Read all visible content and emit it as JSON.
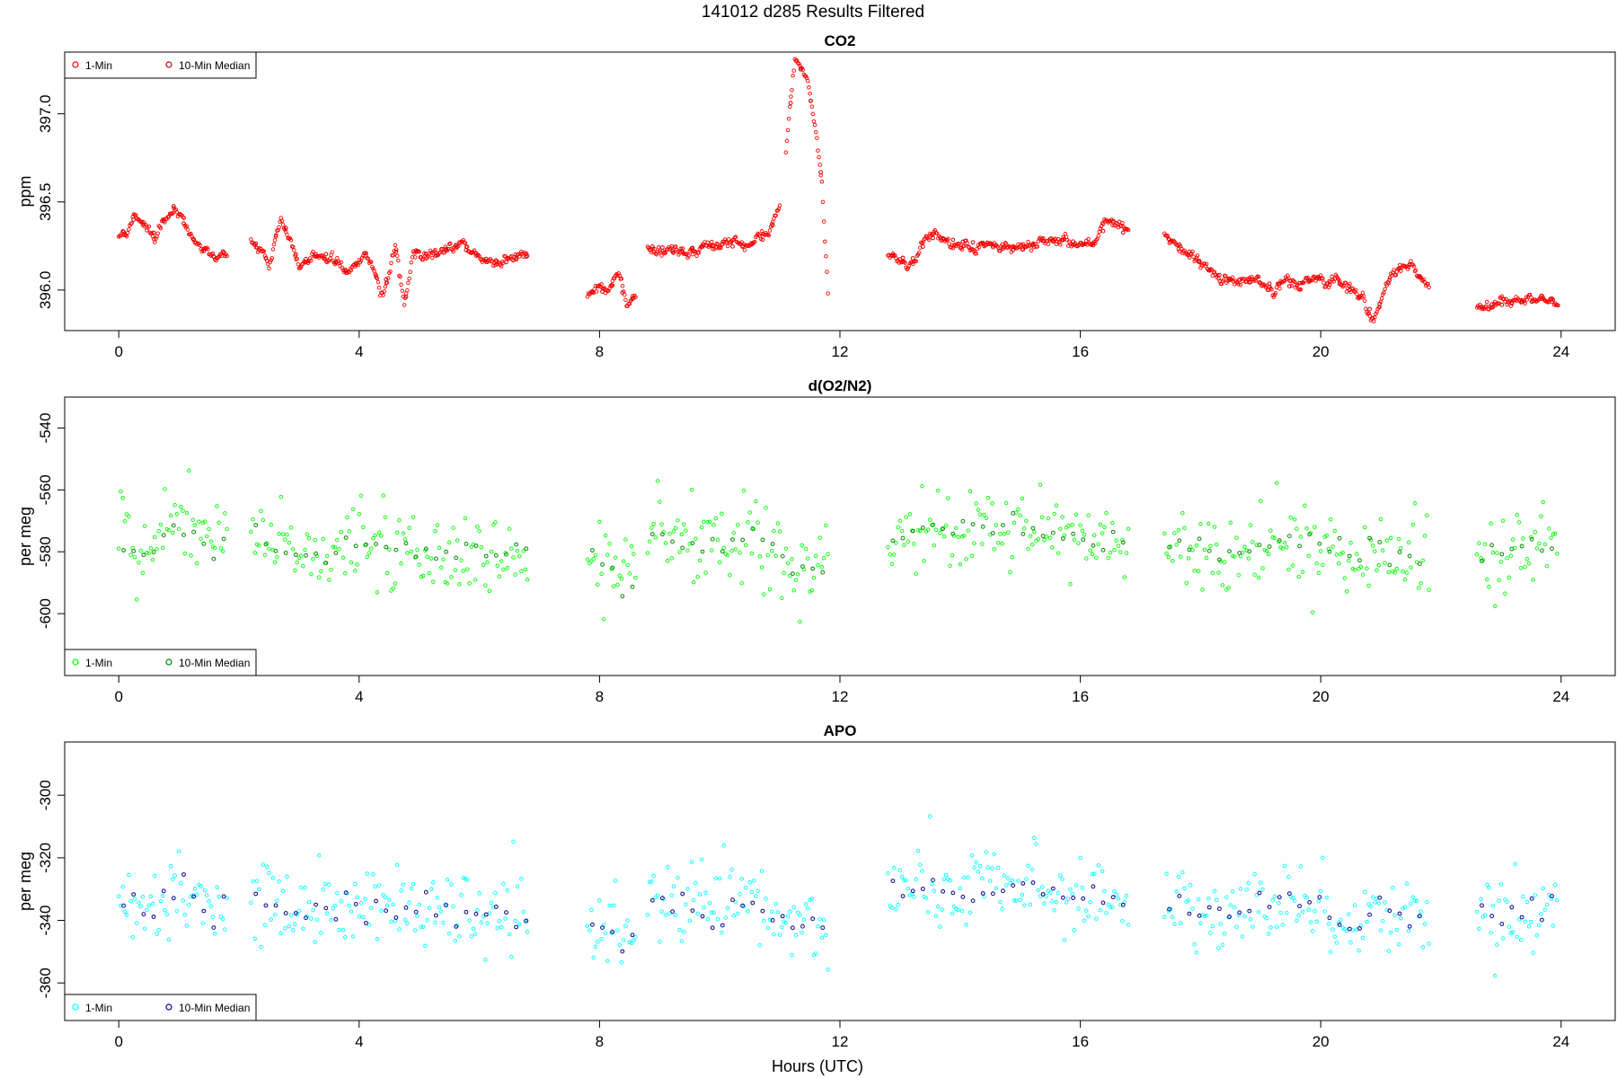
{
  "figure": {
    "title": "141012   d285   Results Filtered",
    "xlabel": "Hours (UTC)"
  },
  "chart_data": [
    {
      "type": "scatter",
      "title": "CO2",
      "xlabel": "",
      "ylabel": "ppm",
      "xlim": [
        -0.9,
        24.9
      ],
      "ylim": [
        395.77,
        397.35
      ],
      "xticks": [
        0,
        4,
        8,
        12,
        16,
        20,
        24
      ],
      "yticks": [
        396.0,
        396.5,
        397.0
      ],
      "ytick_labels": [
        "396.0",
        "396.5",
        "397.0"
      ],
      "legend": {
        "placement": "top-left",
        "entries": [
          "1-Min",
          "10-Min Median"
        ]
      },
      "colors": {
        "one_min": "#ff0000",
        "median": "#cc0000"
      },
      "segments": [
        {
          "range": [
            0.0,
            1.8
          ],
          "points": [
            [
              0.0,
              396.3
            ],
            [
              0.3,
              396.42
            ],
            [
              0.6,
              396.32
            ],
            [
              0.9,
              396.48
            ],
            [
              1.2,
              396.3
            ],
            [
              1.5,
              396.18
            ],
            [
              1.8,
              396.22
            ]
          ]
        },
        {
          "range": [
            2.2,
            6.8
          ],
          "points": [
            [
              2.2,
              396.3
            ],
            [
              2.5,
              396.15
            ],
            [
              2.7,
              396.42
            ],
            [
              3.0,
              396.15
            ],
            [
              3.4,
              396.22
            ],
            [
              3.8,
              396.1
            ],
            [
              4.1,
              396.2
            ],
            [
              4.4,
              396.0
            ],
            [
              4.6,
              396.25
            ],
            [
              4.75,
              395.9
            ],
            [
              4.9,
              396.22
            ],
            [
              5.3,
              396.2
            ],
            [
              5.6,
              396.26
            ],
            [
              6.0,
              396.18
            ],
            [
              6.4,
              396.16
            ],
            [
              6.8,
              396.19
            ]
          ]
        },
        {
          "range": [
            7.8,
            8.6
          ],
          "points": [
            [
              7.8,
              395.98
            ],
            [
              8.1,
              396.0
            ],
            [
              8.3,
              396.05
            ],
            [
              8.45,
              395.93
            ],
            [
              8.6,
              395.96
            ]
          ]
        },
        {
          "range": [
            8.8,
            11.0
          ],
          "points": [
            [
              8.8,
              396.25
            ],
            [
              9.2,
              396.23
            ],
            [
              9.6,
              396.24
            ],
            [
              10.0,
              396.26
            ],
            [
              10.4,
              396.24
            ],
            [
              10.8,
              396.3
            ],
            [
              11.0,
              396.45
            ]
          ]
        },
        {
          "range": [
            11.1,
            11.8
          ],
          "points": [
            [
              11.1,
              396.8
            ],
            [
              11.25,
              397.3
            ],
            [
              11.45,
              397.2
            ],
            [
              11.6,
              396.9
            ],
            [
              11.7,
              396.6
            ],
            [
              11.8,
              395.98
            ]
          ]
        },
        {
          "range": [
            12.8,
            16.8
          ],
          "points": [
            [
              12.8,
              396.2
            ],
            [
              13.2,
              396.17
            ],
            [
              13.5,
              396.3
            ],
            [
              14.0,
              396.28
            ],
            [
              14.5,
              396.25
            ],
            [
              15.0,
              396.22
            ],
            [
              15.4,
              396.28
            ],
            [
              15.8,
              396.28
            ],
            [
              16.2,
              396.25
            ],
            [
              16.5,
              396.4
            ],
            [
              16.8,
              396.3
            ]
          ]
        },
        {
          "range": [
            17.4,
            21.8
          ],
          "points": [
            [
              17.4,
              396.3
            ],
            [
              17.8,
              396.22
            ],
            [
              18.2,
              396.1
            ],
            [
              18.6,
              396.05
            ],
            [
              19.0,
              396.04
            ],
            [
              19.5,
              396.03
            ],
            [
              20.0,
              396.06
            ],
            [
              20.4,
              396.03
            ],
            [
              20.7,
              395.95
            ],
            [
              20.9,
              395.85
            ],
            [
              21.2,
              396.1
            ],
            [
              21.5,
              396.15
            ],
            [
              21.8,
              396.0
            ]
          ]
        },
        {
          "range": [
            22.6,
            23.95
          ],
          "points": [
            [
              22.6,
              395.9
            ],
            [
              23.0,
              395.92
            ],
            [
              23.4,
              395.93
            ],
            [
              23.95,
              395.96
            ]
          ]
        }
      ]
    },
    {
      "type": "scatter",
      "title": "d(O2/N2)",
      "xlabel": "",
      "ylabel": "per meg",
      "xlim": [
        -0.9,
        24.9
      ],
      "ylim": [
        -620,
        -530
      ],
      "xticks": [
        0,
        4,
        8,
        12,
        16,
        20,
        24
      ],
      "yticks": [
        -600,
        -580,
        -560,
        -540
      ],
      "ytick_labels": [
        "-600",
        "-580",
        "-560",
        "-540"
      ],
      "legend": {
        "placement": "bottom-left",
        "entries": [
          "1-Min",
          "10-Min Median"
        ]
      },
      "colors": {
        "one_min": "#00ff00",
        "median": "#008800"
      },
      "segments": [
        {
          "range": [
            0.0,
            1.8
          ],
          "points": [
            [
              0.0,
              -578
            ],
            [
              0.5,
              -580
            ],
            [
              1.0,
              -570
            ],
            [
              1.5,
              -578
            ],
            [
              1.8,
              -576
            ]
          ]
        },
        {
          "range": [
            2.2,
            6.8
          ],
          "points": [
            [
              2.2,
              -574
            ],
            [
              3.0,
              -582
            ],
            [
              4.0,
              -578
            ],
            [
              5.0,
              -580
            ],
            [
              6.0,
              -581
            ],
            [
              6.8,
              -580
            ]
          ]
        },
        {
          "range": [
            7.8,
            8.6
          ],
          "points": [
            [
              7.8,
              -582
            ],
            [
              8.3,
              -588
            ],
            [
              8.6,
              -592
            ]
          ]
        },
        {
          "range": [
            8.8,
            11.8
          ],
          "points": [
            [
              8.8,
              -575
            ],
            [
              9.5,
              -578
            ],
            [
              10.0,
              -580
            ],
            [
              10.6,
              -576
            ],
            [
              11.2,
              -586
            ],
            [
              11.8,
              -585
            ]
          ]
        },
        {
          "range": [
            12.8,
            16.8
          ],
          "points": [
            [
              12.8,
              -575
            ],
            [
              13.5,
              -572
            ],
            [
              14.5,
              -573
            ],
            [
              15.0,
              -570
            ],
            [
              15.8,
              -575
            ],
            [
              16.8,
              -576
            ]
          ]
        },
        {
          "range": [
            17.4,
            21.8
          ],
          "points": [
            [
              17.4,
              -578
            ],
            [
              18.5,
              -580
            ],
            [
              19.5,
              -575
            ],
            [
              20.5,
              -582
            ],
            [
              21.3,
              -580
            ],
            [
              21.8,
              -584
            ]
          ]
        },
        {
          "range": [
            22.6,
            23.95
          ],
          "points": [
            [
              22.6,
              -580
            ],
            [
              23.3,
              -580
            ],
            [
              23.95,
              -577
            ]
          ]
        }
      ]
    },
    {
      "type": "scatter",
      "title": "APO",
      "xlabel": "Hours (UTC)",
      "ylabel": "per meg",
      "xlim": [
        -0.9,
        24.9
      ],
      "ylim": [
        -372,
        -283
      ],
      "xticks": [
        0,
        4,
        8,
        12,
        16,
        20,
        24
      ],
      "yticks": [
        -360,
        -340,
        -320,
        -300
      ],
      "ytick_labels": [
        "-360",
        "-340",
        "-320",
        "-300"
      ],
      "legend": {
        "placement": "bottom-left",
        "entries": [
          "1-Min",
          "10-Min Median"
        ]
      },
      "colors": {
        "one_min": "#00ffff",
        "median": "#00008b"
      },
      "segments": [
        {
          "range": [
            0.0,
            1.8
          ],
          "points": [
            [
              0.0,
              -335
            ],
            [
              0.5,
              -336
            ],
            [
              1.0,
              -328
            ],
            [
              1.5,
              -336
            ],
            [
              1.8,
              -334
            ]
          ]
        },
        {
          "range": [
            2.2,
            6.8
          ],
          "points": [
            [
              2.2,
              -333
            ],
            [
              3.0,
              -338
            ],
            [
              4.0,
              -335
            ],
            [
              5.0,
              -336
            ],
            [
              6.0,
              -338
            ],
            [
              6.8,
              -338
            ]
          ]
        },
        {
          "range": [
            7.8,
            8.6
          ],
          "points": [
            [
              7.8,
              -340
            ],
            [
              8.3,
              -346
            ],
            [
              8.6,
              -348
            ]
          ]
        },
        {
          "range": [
            8.8,
            11.8
          ],
          "points": [
            [
              8.8,
              -333
            ],
            [
              9.5,
              -336
            ],
            [
              10.0,
              -338
            ],
            [
              10.6,
              -334
            ],
            [
              11.2,
              -342
            ],
            [
              11.8,
              -341
            ]
          ]
        },
        {
          "range": [
            12.8,
            16.8
          ],
          "points": [
            [
              12.8,
              -331
            ],
            [
              13.5,
              -330
            ],
            [
              14.5,
              -331
            ],
            [
              15.0,
              -328
            ],
            [
              15.8,
              -332
            ],
            [
              16.8,
              -333
            ]
          ]
        },
        {
          "range": [
            17.4,
            21.8
          ],
          "points": [
            [
              17.4,
              -335
            ],
            [
              18.5,
              -337
            ],
            [
              19.5,
              -333
            ],
            [
              20.5,
              -340
            ],
            [
              21.3,
              -336
            ],
            [
              21.8,
              -340
            ]
          ]
        },
        {
          "range": [
            22.6,
            23.95
          ],
          "points": [
            [
              22.6,
              -338
            ],
            [
              23.3,
              -338
            ],
            [
              23.95,
              -334
            ]
          ]
        }
      ]
    }
  ]
}
